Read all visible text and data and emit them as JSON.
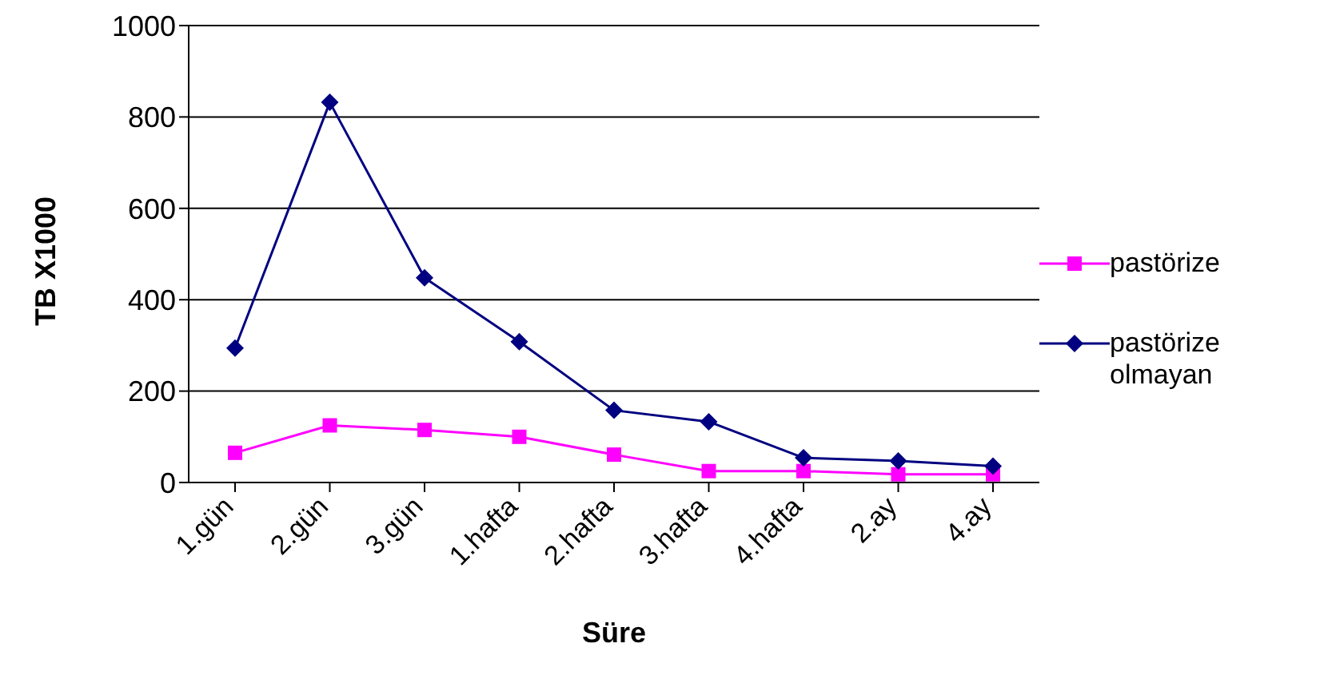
{
  "chart_data": {
    "type": "line",
    "xlabel": "Süre",
    "ylabel": "TB X1000",
    "categories": [
      "1.gün",
      "2.gün",
      "3.gün",
      "1.hafta",
      "2.hafta",
      "3.hafta",
      "4.hafta",
      "2.ay",
      "4.ay"
    ],
    "series": [
      {
        "name": "pastörize",
        "color": "#ff00ff",
        "marker": "square",
        "values": [
          65,
          125,
          115,
          100,
          61,
          25,
          25,
          18,
          18
        ]
      },
      {
        "name": "pastörize olmayan",
        "color": "#000080",
        "marker": "diamond",
        "values": [
          294,
          832,
          448,
          308,
          158,
          133,
          54,
          47,
          36
        ]
      }
    ],
    "ylim": [
      0,
      1000
    ],
    "yticks": [
      0,
      200,
      400,
      600,
      800,
      1000
    ],
    "grid": "y",
    "legend": "right"
  }
}
